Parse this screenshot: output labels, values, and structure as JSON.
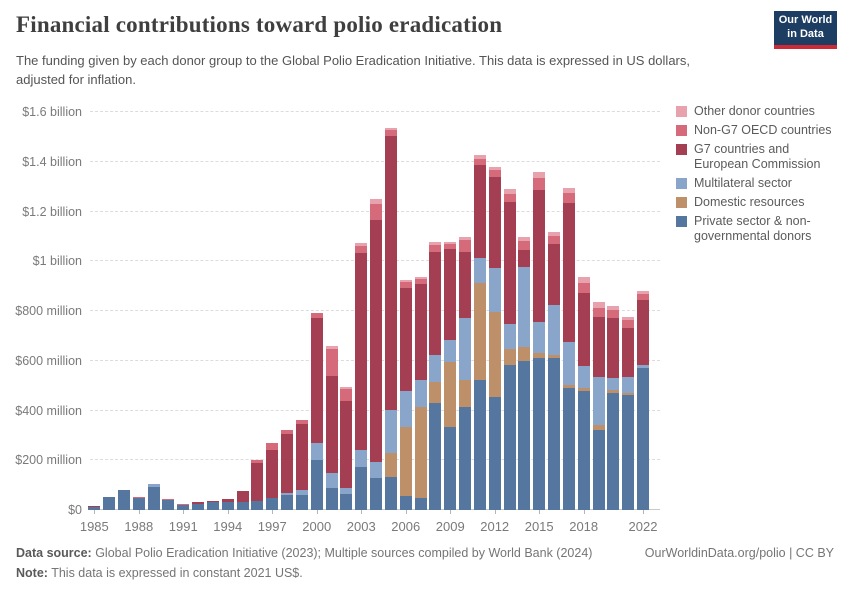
{
  "header": {
    "title": "Financial contributions toward polio eradication",
    "subtitle": "The funding given by each donor group to the Global Polio Eradication Initiative. This data is expressed in US dollars, adjusted for inflation.",
    "logo": {
      "line1": "Our World",
      "line2": "in Data"
    }
  },
  "chart_data": {
    "type": "bar",
    "stacked": true,
    "title": "Financial contributions toward polio eradication",
    "unit": "million constant 2021 US$",
    "ylim": [
      0,
      1600
    ],
    "grid": "horizontal-dashed",
    "legend_position": "right",
    "x": [
      1985,
      1986,
      1987,
      1988,
      1989,
      1990,
      1991,
      1992,
      1993,
      1994,
      1995,
      1996,
      1997,
      1998,
      1999,
      2000,
      2001,
      2002,
      2003,
      2004,
      2005,
      2006,
      2007,
      2008,
      2009,
      2010,
      2011,
      2012,
      2013,
      2014,
      2015,
      2016,
      2017,
      2018,
      2019,
      2020,
      2021,
      2022
    ],
    "series": [
      {
        "name": "Private sector & non-governmental donors",
        "color": "#55779f",
        "values": [
          11,
          51,
          79,
          47,
          94,
          41,
          20,
          23,
          31,
          33,
          33,
          35,
          47,
          61,
          60,
          201,
          87,
          65,
          174,
          127,
          134,
          58,
          47,
          431,
          335,
          415,
          523,
          456,
          583,
          600,
          610,
          610,
          490,
          480,
          322,
          472,
          462,
          571
        ]
      },
      {
        "name": "Domestic resources",
        "color": "#bd906a",
        "values": [
          0,
          0,
          0,
          0,
          0,
          0,
          0,
          0,
          0,
          0,
          0,
          0,
          0,
          0,
          0,
          0,
          0,
          0,
          0,
          0,
          94,
          277,
          366,
          84,
          261,
          107,
          389,
          342,
          63,
          55,
          20,
          13,
          13,
          10,
          20,
          11,
          7,
          0
        ]
      },
      {
        "name": "Multilateral sector",
        "color": "#89a5ca",
        "values": [
          0,
          2,
          2,
          0,
          9,
          0,
          0,
          0,
          0,
          0,
          0,
          0,
          0,
          8,
          20,
          68,
          63,
          25,
          67,
          67,
          175,
          145,
          110,
          107,
          87,
          249,
          101,
          174,
          100,
          320,
          127,
          201,
          174,
          87,
          194,
          47,
          67,
          10
        ]
      },
      {
        "name": "G7 countries and European Commission",
        "color": "#a43e53",
        "values": [
          6,
          0,
          0,
          0,
          0,
          0,
          0,
          8,
          5,
          11,
          43,
          156,
          193,
          237,
          265,
          503,
          389,
          350,
          792,
          972,
          1099,
          412,
          384,
          416,
          365,
          268,
          375,
          368,
          493,
          70,
          529,
          244,
          559,
          297,
          241,
          241,
          194,
          264
        ]
      },
      {
        "name": "Non-G7 OECD countries",
        "color": "#d46a7a",
        "values": [
          0,
          0,
          0,
          4,
          0,
          3,
          5,
          0,
          0,
          0,
          0,
          12,
          29,
          17,
          15,
          20,
          110,
          45,
          30,
          64,
          24,
          23,
          20,
          28,
          20,
          45,
          25,
          25,
          30,
          35,
          49,
          34,
          40,
          39,
          35,
          34,
          32,
          25
        ]
      },
      {
        "name": "Other donor countries",
        "color": "#e7a2ae",
        "values": [
          0,
          0,
          0,
          0,
          0,
          0,
          0,
          0,
          0,
          0,
          0,
          0,
          0,
          0,
          0,
          0,
          10,
          10,
          10,
          20,
          10,
          10,
          10,
          12,
          10,
          15,
          14,
          15,
          20,
          16,
          25,
          17,
          20,
          25,
          25,
          15,
          15,
          12
        ]
      }
    ],
    "y_ticks": [
      {
        "value": 0,
        "label": "$0"
      },
      {
        "value": 200,
        "label": "$200 million"
      },
      {
        "value": 400,
        "label": "$400 million"
      },
      {
        "value": 600,
        "label": "$600 million"
      },
      {
        "value": 800,
        "label": "$800 million"
      },
      {
        "value": 1000,
        "label": "$1 billion"
      },
      {
        "value": 1200,
        "label": "$1.2 billion"
      },
      {
        "value": 1400,
        "label": "$1.4 billion"
      },
      {
        "value": 1600,
        "label": "$1.6 billion"
      }
    ],
    "x_ticks": [
      1985,
      1988,
      1991,
      1994,
      1997,
      2000,
      2003,
      2006,
      2009,
      2012,
      2015,
      2018,
      2022
    ]
  },
  "footer": {
    "source_label": "Data source:",
    "source_text": " Global Polio Eradication Initiative (2023); Multiple sources compiled by World Bank (2024)",
    "link": "OurWorldinData.org/polio | CC BY",
    "note_label": "Note:",
    "note_text": " This data is expressed in constant 2021 US$."
  }
}
